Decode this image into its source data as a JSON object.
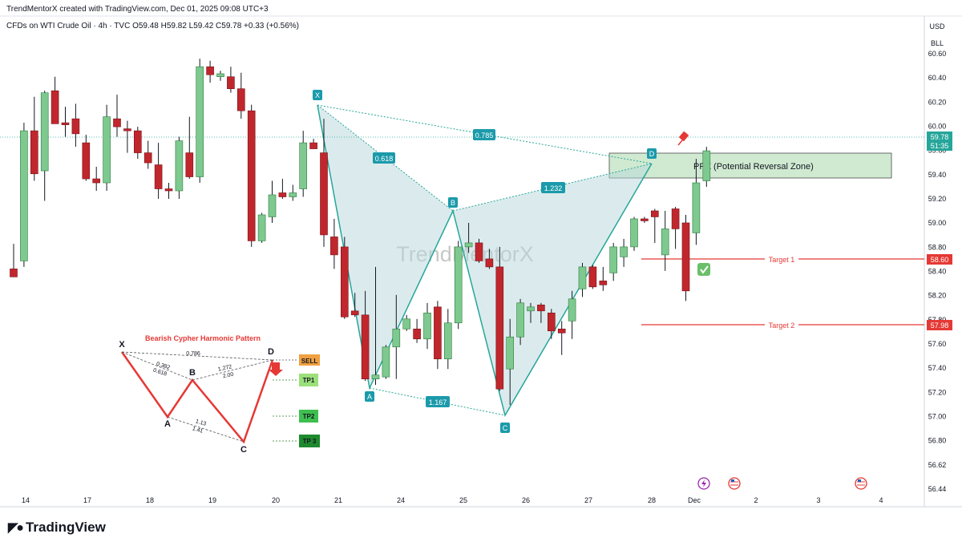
{
  "header": {
    "created_line": "TrendMentorX created with TradingView.com, Dec 01, 2025 09:08 UTC+3",
    "symbol_line": "CFDs on WTI Crude Oil · 4h · TVC  O59.48  H59.82  L59.42  C59.78  +0.33 (+0.56%)",
    "currency": "USD",
    "unit": "BLL"
  },
  "watermark": "TrendMentorX",
  "footer": {
    "logo_text": "TradingView"
  },
  "colors": {
    "up": "#7ec98f",
    "down": "#c0272d",
    "pattern_line": "#26a69a",
    "pattern_fill": "#b7d7dc",
    "prz_fill": "#c8e6c9",
    "target_line": "#e53935",
    "cypher_leg": "#e53935"
  },
  "chart_data": {
    "type": "candlestick",
    "timeframe": "4h",
    "y_range": [
      56.4,
      60.75
    ],
    "y_ticks": [
      "60.60",
      "60.40",
      "60.20",
      "60.00",
      "59.60",
      "59.40",
      "59.20",
      "59.00",
      "58.80",
      "58.40",
      "58.20",
      "57.80",
      "57.60",
      "57.40",
      "57.20",
      "57.00",
      "56.80",
      "56.62",
      "56.44"
    ],
    "x_ticks": [
      "14",
      "17",
      "18",
      "19",
      "20",
      "21",
      "24",
      "25",
      "26",
      "27",
      "28",
      "Dec",
      "2",
      "3",
      "4"
    ],
    "last_price": "59.78",
    "countdown": "51:35",
    "candles": [
      {
        "o": 58.6,
        "h": 58.85,
        "l": 58.52,
        "c": 58.52
      },
      {
        "o": 58.68,
        "h": 60.06,
        "l": 58.62,
        "c": 59.98
      },
      {
        "o": 59.98,
        "h": 60.32,
        "l": 59.48,
        "c": 59.55
      },
      {
        "o": 59.58,
        "h": 60.38,
        "l": 59.28,
        "c": 60.36
      },
      {
        "o": 60.38,
        "h": 60.52,
        "l": 60.06,
        "c": 60.05
      },
      {
        "o": 60.06,
        "h": 60.22,
        "l": 59.92,
        "c": 60.04
      },
      {
        "o": 60.1,
        "h": 60.25,
        "l": 59.82,
        "c": 59.95
      },
      {
        "o": 59.86,
        "h": 59.94,
        "l": 59.48,
        "c": 59.5
      },
      {
        "o": 59.5,
        "h": 59.62,
        "l": 59.38,
        "c": 59.46
      },
      {
        "o": 59.46,
        "h": 60.24,
        "l": 59.38,
        "c": 60.12
      },
      {
        "o": 60.1,
        "h": 60.34,
        "l": 59.92,
        "c": 60.02
      },
      {
        "o": 60.0,
        "h": 60.08,
        "l": 59.76,
        "c": 59.98
      },
      {
        "o": 59.98,
        "h": 60.02,
        "l": 59.7,
        "c": 59.76
      },
      {
        "o": 59.76,
        "h": 59.88,
        "l": 59.6,
        "c": 59.66
      },
      {
        "o": 59.64,
        "h": 59.86,
        "l": 59.3,
        "c": 59.4
      },
      {
        "o": 59.4,
        "h": 59.46,
        "l": 59.3,
        "c": 59.38
      },
      {
        "o": 59.38,
        "h": 59.92,
        "l": 59.3,
        "c": 59.88
      },
      {
        "o": 59.76,
        "h": 60.12,
        "l": 59.5,
        "c": 59.52
      },
      {
        "o": 59.52,
        "h": 60.7,
        "l": 59.46,
        "c": 60.62
      },
      {
        "o": 60.62,
        "h": 60.68,
        "l": 60.46,
        "c": 60.54
      },
      {
        "o": 60.52,
        "h": 60.58,
        "l": 60.48,
        "c": 60.55
      },
      {
        "o": 60.52,
        "h": 60.62,
        "l": 60.36,
        "c": 60.4
      },
      {
        "o": 60.4,
        "h": 60.56,
        "l": 60.1,
        "c": 60.18
      },
      {
        "o": 60.18,
        "h": 60.24,
        "l": 58.82,
        "c": 58.88
      },
      {
        "o": 58.88,
        "h": 59.16,
        "l": 58.86,
        "c": 59.14
      },
      {
        "o": 59.12,
        "h": 59.48,
        "l": 59.06,
        "c": 59.34
      },
      {
        "o": 59.36,
        "h": 59.5,
        "l": 59.3,
        "c": 59.32
      },
      {
        "o": 59.32,
        "h": 59.44,
        "l": 59.28,
        "c": 59.36
      },
      {
        "o": 59.4,
        "h": 59.98,
        "l": 59.32,
        "c": 59.86
      },
      {
        "o": 59.86,
        "h": 59.9,
        "l": 59.8,
        "c": 59.8
      },
      {
        "o": 59.76,
        "h": 60.1,
        "l": 58.82,
        "c": 58.94
      },
      {
        "o": 58.92,
        "h": 59.1,
        "l": 58.6,
        "c": 58.74
      },
      {
        "o": 58.82,
        "h": 58.92,
        "l": 58.1,
        "c": 58.12
      },
      {
        "o": 58.18,
        "h": 58.36,
        "l": 58.12,
        "c": 58.14
      },
      {
        "o": 58.14,
        "h": 58.38,
        "l": 57.48,
        "c": 57.5
      },
      {
        "o": 57.5,
        "h": 58.62,
        "l": 57.44,
        "c": 57.54
      },
      {
        "o": 57.52,
        "h": 57.84,
        "l": 57.5,
        "c": 57.82
      },
      {
        "o": 57.82,
        "h": 58.34,
        "l": 57.5,
        "c": 58.0
      },
      {
        "o": 58.0,
        "h": 58.14,
        "l": 57.98,
        "c": 58.1
      },
      {
        "o": 58.0,
        "h": 58.1,
        "l": 57.86,
        "c": 57.9
      },
      {
        "o": 57.9,
        "h": 58.26,
        "l": 57.8,
        "c": 58.16
      },
      {
        "o": 58.22,
        "h": 58.28,
        "l": 57.6,
        "c": 57.7
      },
      {
        "o": 57.7,
        "h": 58.2,
        "l": 57.6,
        "c": 58.06
      },
      {
        "o": 58.06,
        "h": 58.88,
        "l": 58.0,
        "c": 58.82
      },
      {
        "o": 58.82,
        "h": 59.06,
        "l": 58.76,
        "c": 58.86
      },
      {
        "o": 58.86,
        "h": 58.9,
        "l": 58.66,
        "c": 58.68
      },
      {
        "o": 58.7,
        "h": 58.8,
        "l": 58.6,
        "c": 58.62
      },
      {
        "o": 58.62,
        "h": 58.82,
        "l": 57.38,
        "c": 57.4
      },
      {
        "o": 57.6,
        "h": 58.1,
        "l": 57.24,
        "c": 57.92
      },
      {
        "o": 57.92,
        "h": 58.3,
        "l": 57.84,
        "c": 58.26
      },
      {
        "o": 58.18,
        "h": 58.26,
        "l": 58.06,
        "c": 58.22
      },
      {
        "o": 58.24,
        "h": 58.26,
        "l": 58.06,
        "c": 58.18
      },
      {
        "o": 58.16,
        "h": 58.2,
        "l": 57.9,
        "c": 57.98
      },
      {
        "o": 58.0,
        "h": 58.08,
        "l": 57.74,
        "c": 57.96
      },
      {
        "o": 58.08,
        "h": 58.38,
        "l": 57.9,
        "c": 58.3
      },
      {
        "o": 58.4,
        "h": 58.66,
        "l": 58.32,
        "c": 58.62
      },
      {
        "o": 58.62,
        "h": 58.64,
        "l": 58.4,
        "c": 58.42
      },
      {
        "o": 58.48,
        "h": 58.62,
        "l": 58.38,
        "c": 58.44
      },
      {
        "o": 58.56,
        "h": 58.86,
        "l": 58.48,
        "c": 58.82
      },
      {
        "o": 58.72,
        "h": 58.9,
        "l": 58.62,
        "c": 58.82
      },
      {
        "o": 58.82,
        "h": 59.12,
        "l": 58.78,
        "c": 59.1
      },
      {
        "o": 59.1,
        "h": 59.12,
        "l": 59.06,
        "c": 59.08
      },
      {
        "o": 59.18,
        "h": 59.2,
        "l": 58.86,
        "c": 59.12
      },
      {
        "o": 58.74,
        "h": 59.18,
        "l": 58.58,
        "c": 59.0
      },
      {
        "o": 59.2,
        "h": 59.22,
        "l": 58.8,
        "c": 59.0
      },
      {
        "o": 59.06,
        "h": 59.14,
        "l": 58.28,
        "c": 58.38
      },
      {
        "o": 58.96,
        "h": 59.7,
        "l": 58.84,
        "c": 59.46
      },
      {
        "o": 59.48,
        "h": 59.82,
        "l": 59.42,
        "c": 59.78
      }
    ],
    "pattern": {
      "name": "Cypher (bearish)",
      "points": [
        {
          "label": "X",
          "value": 60.12
        },
        {
          "label": "A",
          "value": 57.4
        },
        {
          "label": "B",
          "value": 59.1
        },
        {
          "label": "C",
          "value": 57.1
        },
        {
          "label": "D",
          "value": 59.62
        }
      ],
      "ratios": [
        "0.618",
        "1.232",
        "0.785",
        "1.167"
      ]
    },
    "prz_label": "PRZ (Potential Reversal Zone)",
    "targets": [
      {
        "label": "Target 1",
        "price": "58.60",
        "hit": true
      },
      {
        "label": "Target 2",
        "price": "57.98",
        "hit": false
      }
    ]
  },
  "diagram": {
    "title": "Bearish Cypher Harmonic Pattern",
    "points": [
      "X",
      "A",
      "B",
      "C",
      "D"
    ],
    "ratios": {
      "xd": "0.786",
      "xb_1": "0.382",
      "xb_2": "0.618",
      "ad_1": "1.272",
      "ad_2": "2.00",
      "ac_1": "1.13",
      "ac_2": "1.41"
    },
    "levels": [
      "SELL",
      "TP1",
      "TP2",
      "TP 3"
    ]
  }
}
